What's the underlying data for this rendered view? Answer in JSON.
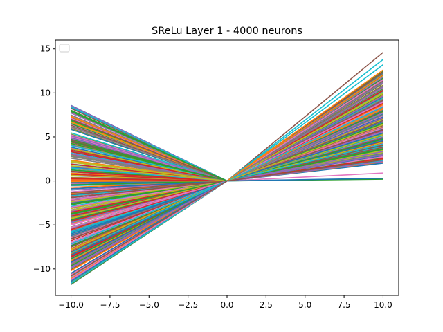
{
  "chart_data": {
    "type": "line",
    "title": "SReLu Layer 1 - 4000 neurons",
    "xlabel": "",
    "ylabel": "",
    "xlim": [
      -11,
      11
    ],
    "ylim": [
      -13,
      16
    ],
    "x_ticks": [
      -10.0,
      -7.5,
      -5.0,
      -2.5,
      0.0,
      2.5,
      5.0,
      7.5,
      10.0
    ],
    "x_tick_labels": [
      "−10.0",
      "−7.5",
      "−5.0",
      "−2.5",
      "0.0",
      "2.5",
      "5.0",
      "7.5",
      "10.0"
    ],
    "y_ticks": [
      -10,
      -5,
      0,
      5,
      10,
      15
    ],
    "y_tick_labels": [
      "−10",
      "−5",
      "0",
      "5",
      "10",
      "15"
    ],
    "grid": false,
    "legend": {
      "placement": "upper-left",
      "entries": []
    },
    "line_x": [
      -10,
      0,
      10
    ],
    "highlighted_series": [
      {
        "name": "",
        "color": "#8c564b",
        "x": [
          -10,
          0,
          10
        ],
        "y": [
          7.0,
          0,
          14.6
        ]
      },
      {
        "name": "",
        "color": "#17becf",
        "x": [
          -10,
          0,
          10
        ],
        "y": [
          -11.6,
          0,
          13.8
        ]
      },
      {
        "name": "",
        "color": "#17becf",
        "x": [
          -10,
          0,
          10
        ],
        "y": [
          8.4,
          0,
          13.2
        ]
      },
      {
        "name": "",
        "color": "#ff7f0e",
        "x": [
          -10,
          0,
          10
        ],
        "y": [
          -10.2,
          0,
          12.6
        ]
      },
      {
        "name": "",
        "color": "#e377c2",
        "x": [
          -10,
          0,
          10
        ],
        "y": [
          -11.2,
          0,
          0.9
        ]
      },
      {
        "name": "",
        "color": "#2ca02c",
        "x": [
          -10,
          0,
          10
        ],
        "y": [
          7.9,
          0,
          0.2
        ]
      },
      {
        "name": "",
        "color": "#1f77b4",
        "x": [
          -10,
          0,
          10
        ],
        "y": [
          -10.5,
          0,
          0.3
        ]
      },
      {
        "name": "",
        "color": "#9467bd",
        "x": [
          -10,
          0,
          10
        ],
        "y": [
          -9.8,
          0,
          2.2
        ]
      },
      {
        "name": "",
        "color": "#8c564b",
        "x": [
          -10,
          0,
          10
        ],
        "y": [
          -10.8,
          0,
          2.4
        ]
      }
    ],
    "bundle": {
      "series_count": 4000,
      "rendered_sample": 420,
      "left_y_range": [
        -11.8,
        8.6
      ],
      "right_y_range": [
        0.1,
        14.6
      ],
      "colors": [
        "#1f77b4",
        "#ff7f0e",
        "#2ca02c",
        "#d62728",
        "#9467bd",
        "#8c564b",
        "#e377c2",
        "#7f7f7f",
        "#bcbd22",
        "#17becf"
      ]
    }
  }
}
